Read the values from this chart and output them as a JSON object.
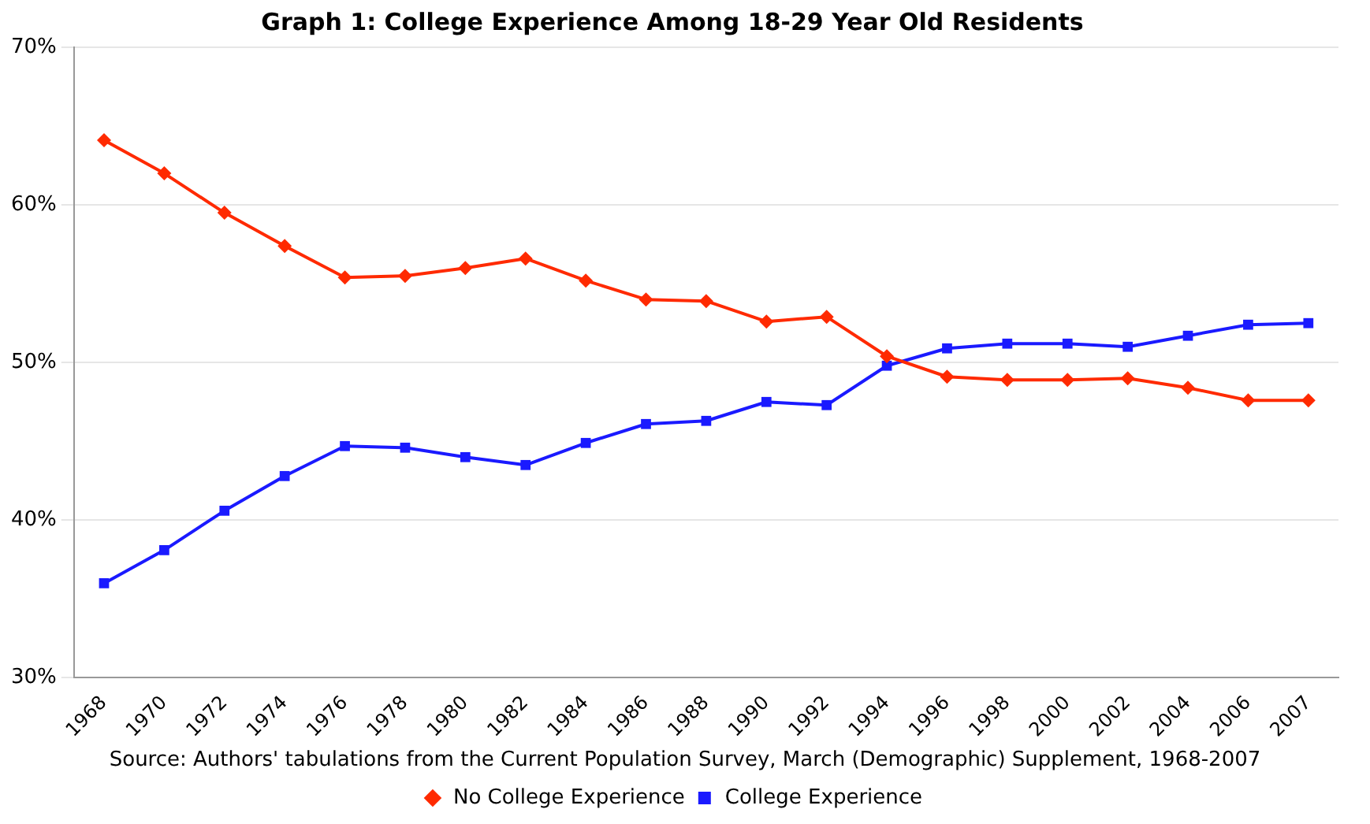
{
  "chart_data": {
    "type": "line",
    "title": "Graph 1: College Experience Among 18-29 Year Old Residents",
    "categories": [
      "1968",
      "1970",
      "1972",
      "1974",
      "1976",
      "1978",
      "1980",
      "1982",
      "1984",
      "1986",
      "1988",
      "1990",
      "1992",
      "1994",
      "1996",
      "1998",
      "2000",
      "2002",
      "2004",
      "2006",
      "2007"
    ],
    "series": [
      {
        "name": "No College Experience",
        "color": "#ff2a00",
        "marker": "diamond",
        "values": [
          64.1,
          62.0,
          59.5,
          57.4,
          55.4,
          55.5,
          56.0,
          56.6,
          55.2,
          54.0,
          53.9,
          52.6,
          52.9,
          50.4,
          49.1,
          48.9,
          48.9,
          49.0,
          48.4,
          47.6,
          47.6
        ]
      },
      {
        "name": "College Experience",
        "color": "#1a1aff",
        "marker": "square",
        "values": [
          36.0,
          38.1,
          40.6,
          42.8,
          44.7,
          44.6,
          44.0,
          43.5,
          44.9,
          46.1,
          46.3,
          47.5,
          47.3,
          49.8,
          50.9,
          51.2,
          51.2,
          51.0,
          51.7,
          52.4,
          52.5
        ]
      }
    ],
    "ylim": [
      30,
      70
    ],
    "yticks": [
      {
        "value": 30,
        "label": "30%"
      },
      {
        "value": 40,
        "label": "40%"
      },
      {
        "value": 50,
        "label": "50%"
      },
      {
        "value": 60,
        "label": "60%"
      },
      {
        "value": 70,
        "label": "70%"
      }
    ],
    "grid": "y",
    "legend": "bottom",
    "line_style": "solid",
    "annotations": [
      "Source: Authors' tabulations from the Current Population Survey, March (Demographic) Supplement, 1968-2007"
    ]
  }
}
